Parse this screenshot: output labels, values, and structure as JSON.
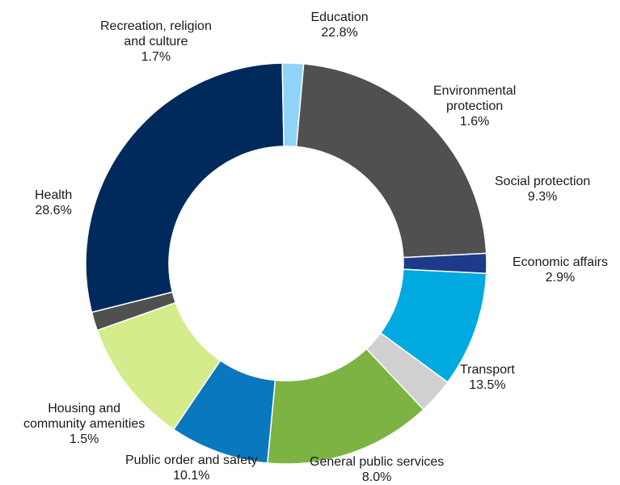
{
  "chart_data": {
    "type": "pie",
    "donut": true,
    "categories": [
      "Education",
      "Environmental protection",
      "Social protection",
      "Economic affairs",
      "Transport",
      "General public services",
      "Public order and safety",
      "Housing and community amenities",
      "Health",
      "Recreation, religion and culture"
    ],
    "values": [
      22.8,
      1.6,
      9.3,
      2.9,
      13.5,
      8.0,
      10.1,
      1.5,
      28.6,
      1.7
    ],
    "value_labels": [
      "22.8%",
      "1.6%",
      "9.3%",
      "2.9%",
      "13.5%",
      "8.0%",
      "10.1%",
      "1.5%",
      "28.6%",
      "1.7%"
    ],
    "label_lines": [
      [
        "Education"
      ],
      [
        "Environmental",
        "protection"
      ],
      [
        "Social protection"
      ],
      [
        "Economic affairs"
      ],
      [
        "Transport"
      ],
      [
        "General public services"
      ],
      [
        "Public order and safety"
      ],
      [
        "Housing and",
        "community amenities"
      ],
      [
        "Health"
      ],
      [
        "Recreation, religion",
        "and culture"
      ]
    ],
    "colors": [
      "#505050",
      "#1f3a8a",
      "#00a9e0",
      "#d0d0d0",
      "#7cb342",
      "#0a78bf",
      "#d4ec8c",
      "#505050",
      "#002a5c",
      "#8fd3f7"
    ],
    "legend": "none",
    "title": ""
  }
}
